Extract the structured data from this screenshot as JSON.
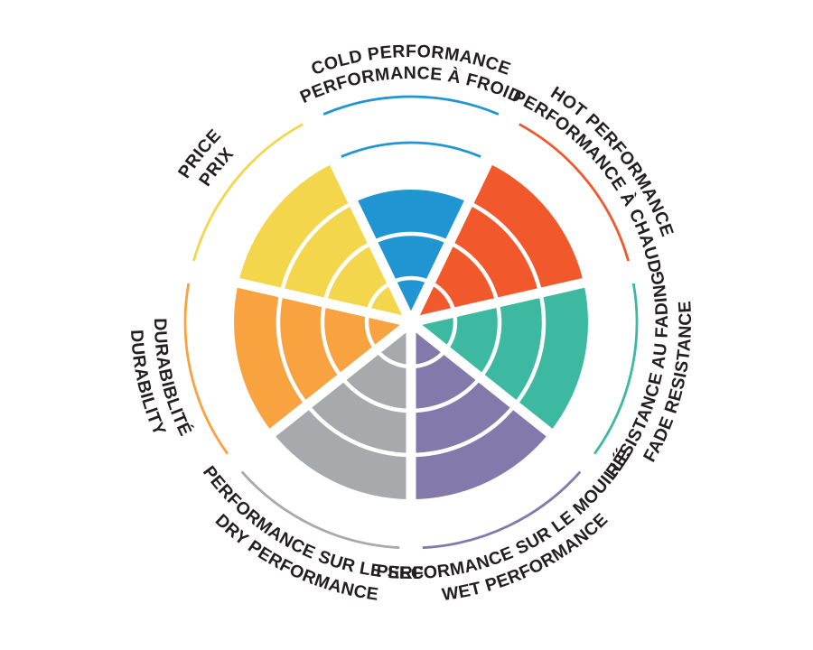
{
  "chart_data": {
    "type": "polar-wheel",
    "title": "",
    "max_rings": 5,
    "background": "#ffffff",
    "text_color": "#231f20",
    "grid": "white ring separators inside filled wedges",
    "legend_position": "labels curved around rim, English outer line / French inner line",
    "categories": [
      {
        "id": "cold",
        "label_en": "COLD PERFORMANCE",
        "label_fr": "PERFORMANCE À FROID",
        "value": 3,
        "color": "#2095d2",
        "extra_ring_marker": 4
      },
      {
        "id": "hot",
        "label_en": "HOT PERFORMANCE",
        "label_fr": "PERFORMANCE À CHAUD",
        "value": 4,
        "color": "#f1582b"
      },
      {
        "id": "fade",
        "label_en": "FADE RESISTANCE",
        "label_fr": "RÉSISTANCE AU FADING",
        "value": 4,
        "color": "#3cb9a0"
      },
      {
        "id": "wet",
        "label_en": "WET PERFORMANCE",
        "label_fr": "PERFORMANCE SUR LE MOUILLÉ",
        "value": 4,
        "color": "#837aab"
      },
      {
        "id": "dry",
        "label_en": "DRY PERFORMANCE",
        "label_fr": "PERFORMANCE SUR LE SEC",
        "value": 4,
        "color": "#a8a9ac"
      },
      {
        "id": "durability",
        "label_en": "DURABILITY",
        "label_fr": "DURABIBLITÉ",
        "value": 4,
        "color": "#f9a240"
      },
      {
        "id": "price",
        "label_en": "PRICE",
        "label_fr": "PRIX",
        "value": 4,
        "color": "#f4d64d"
      }
    ]
  }
}
